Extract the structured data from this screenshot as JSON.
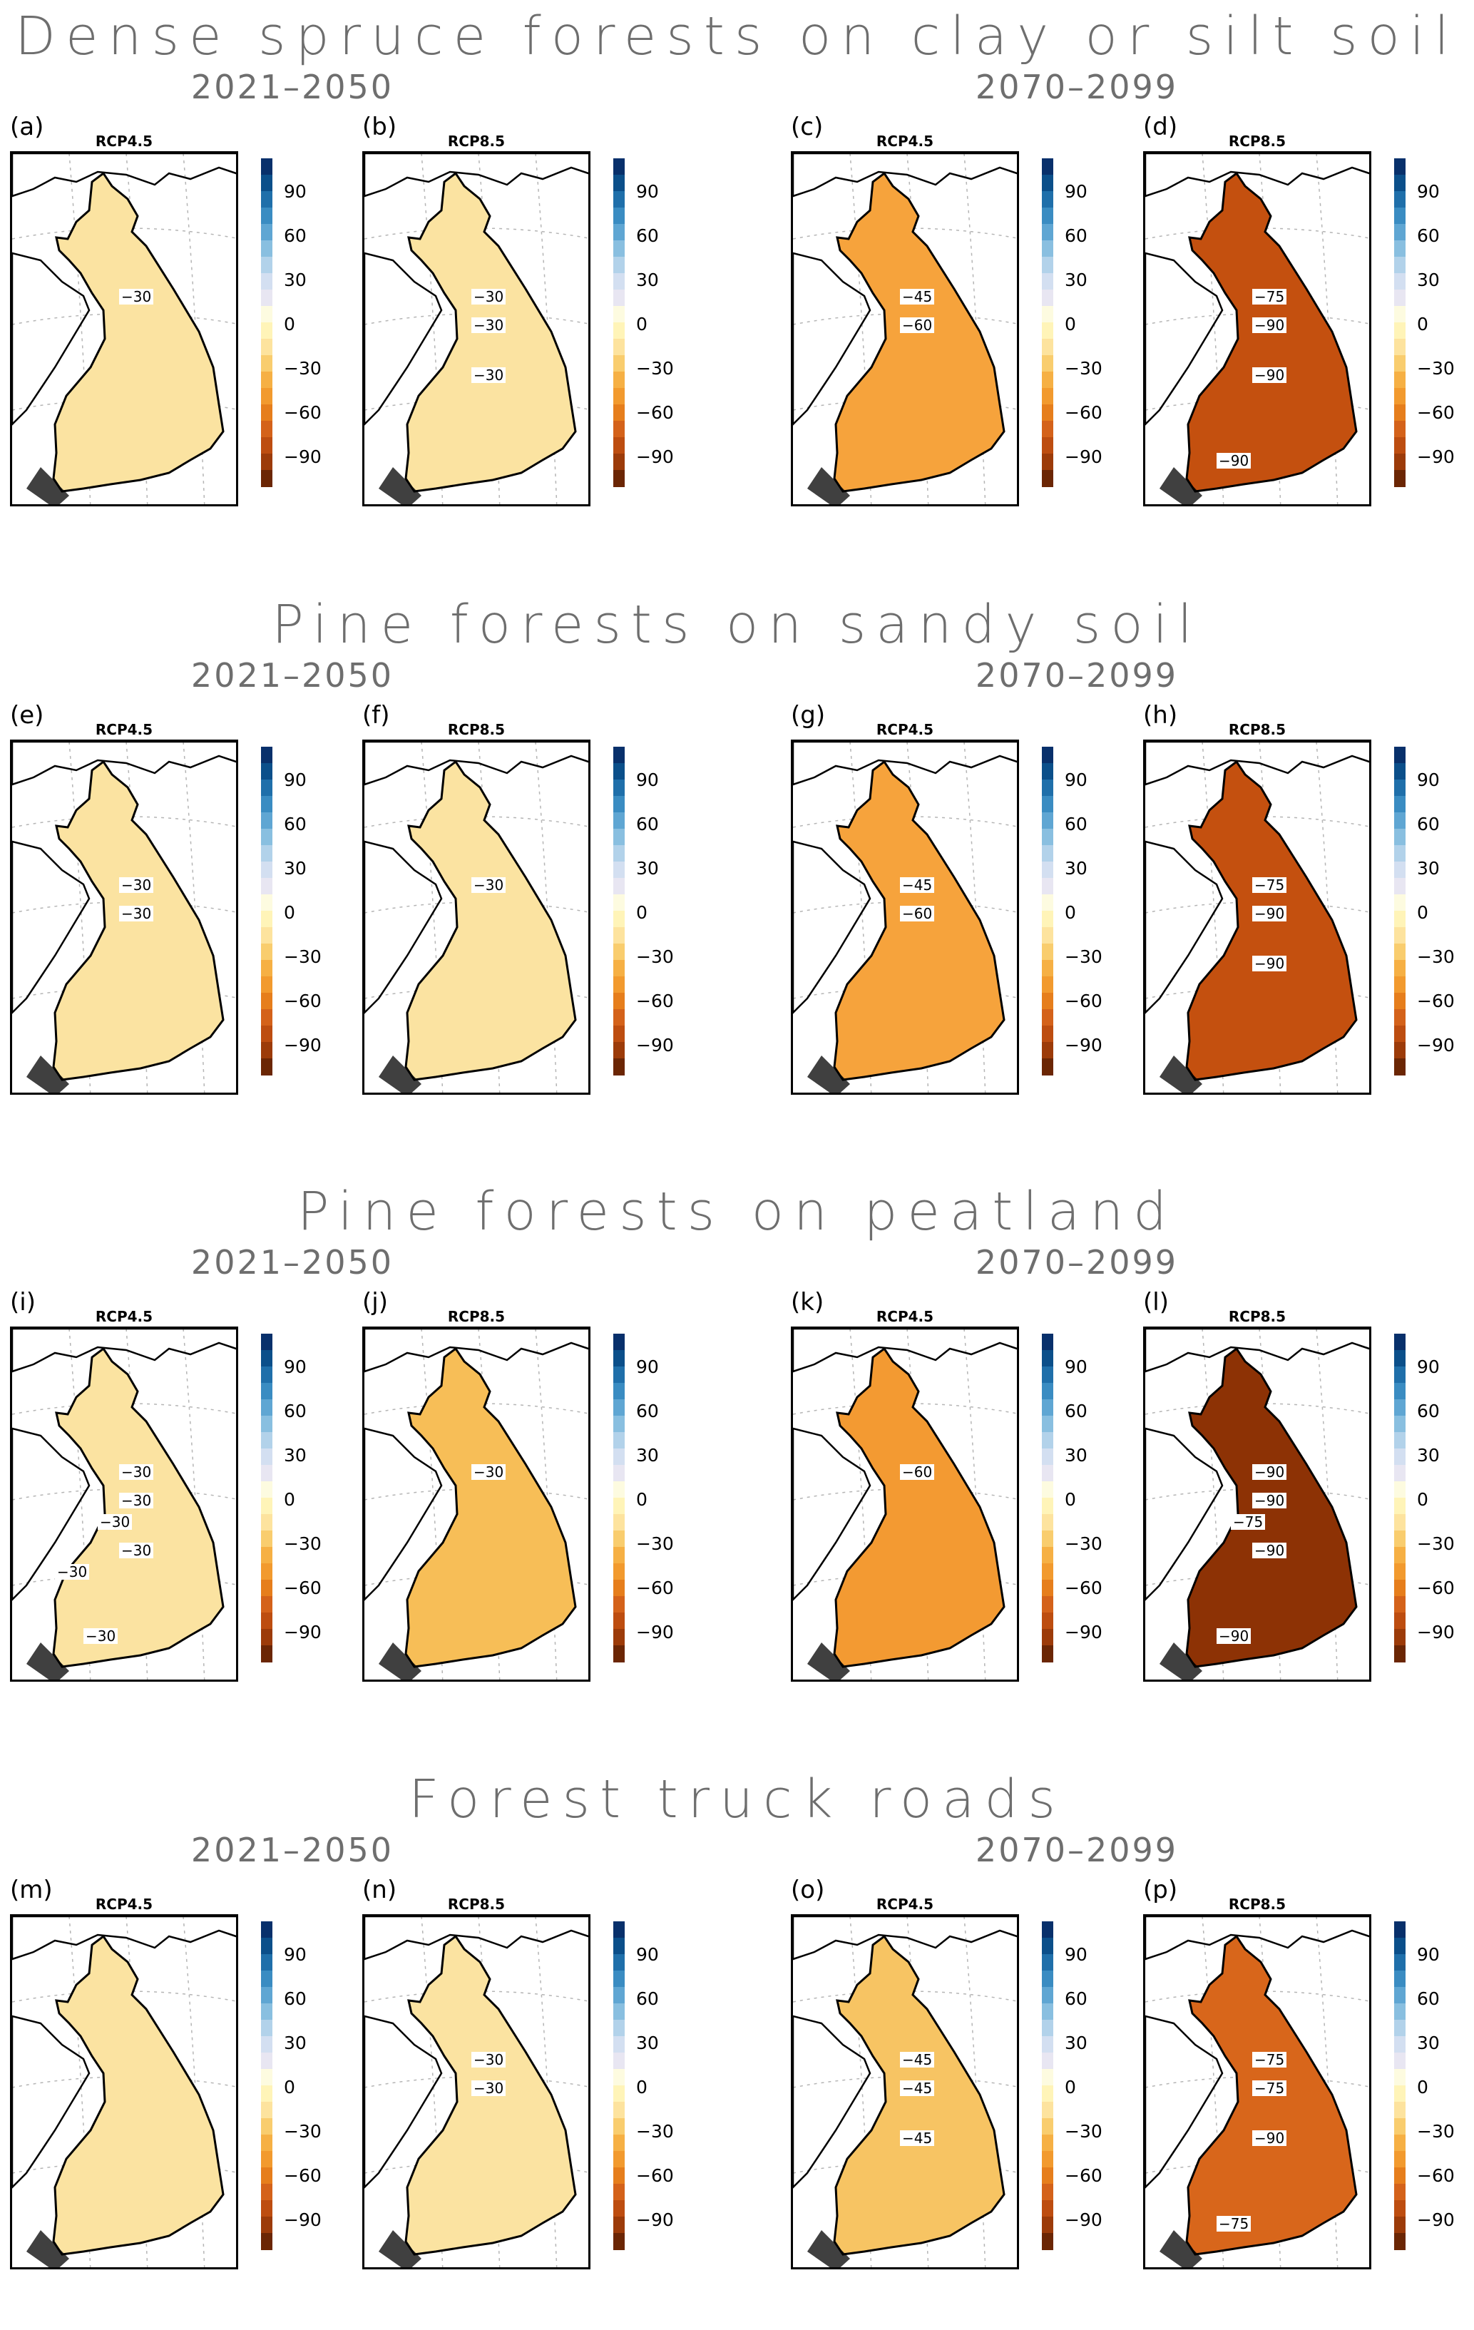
{
  "sections": [
    {
      "title": "Dense spruce forests on clay or silt soil",
      "periods": [
        "2021–2050",
        "2070–2099"
      ],
      "panels": [
        {
          "label": "(a)",
          "scenario": "RCP4.5",
          "fill": "#fbe3a1",
          "contours": [
            "−30"
          ]
        },
        {
          "label": "(b)",
          "scenario": "RCP8.5",
          "fill": "#fbe3a1",
          "contours": [
            "−30",
            "−30",
            "−30"
          ]
        },
        {
          "label": "(c)",
          "scenario": "RCP4.5",
          "fill": "#f6a33c",
          "contours": [
            "−45",
            "−60"
          ]
        },
        {
          "label": "(d)",
          "scenario": "RCP8.5",
          "fill": "#c4500f",
          "contours": [
            "−75",
            "−90",
            "−90",
            "−90"
          ]
        }
      ]
    },
    {
      "title": "Pine forests on sandy soil",
      "periods": [
        "2021–2050",
        "2070–2099"
      ],
      "panels": [
        {
          "label": "(e)",
          "scenario": "RCP4.5",
          "fill": "#fbe3a1",
          "contours": [
            "−30",
            "−30"
          ]
        },
        {
          "label": "(f)",
          "scenario": "RCP8.5",
          "fill": "#fbe3a1",
          "contours": [
            "−30"
          ]
        },
        {
          "label": "(g)",
          "scenario": "RCP4.5",
          "fill": "#f6a33c",
          "contours": [
            "−45",
            "−60"
          ]
        },
        {
          "label": "(h)",
          "scenario": "RCP8.5",
          "fill": "#c4500f",
          "contours": [
            "−75",
            "−90",
            "−90"
          ]
        }
      ]
    },
    {
      "title": "Pine forests on peatland",
      "periods": [
        "2021–2050",
        "2070–2099"
      ],
      "panels": [
        {
          "label": "(i)",
          "scenario": "RCP4.5",
          "fill": "#fbe3a1",
          "contours": [
            "−30",
            "−30",
            "−30",
            "−30",
            "−30",
            "−30"
          ]
        },
        {
          "label": "(j)",
          "scenario": "RCP8.5",
          "fill": "#f7be57",
          "contours": [
            "−30"
          ]
        },
        {
          "label": "(k)",
          "scenario": "RCP4.5",
          "fill": "#f39a32",
          "contours": [
            "−60"
          ]
        },
        {
          "label": "(l)",
          "scenario": "RCP8.5",
          "fill": "#8d3205",
          "contours": [
            "−90",
            "−90",
            "−90",
            "−90",
            "−75"
          ]
        }
      ]
    },
    {
      "title": "Forest truck roads",
      "periods": [
        "2021–2050",
        "2070–2099"
      ],
      "panels": [
        {
          "label": "(m)",
          "scenario": "RCP4.5",
          "fill": "#fbe3a1",
          "contours": []
        },
        {
          "label": "(n)",
          "scenario": "RCP8.5",
          "fill": "#fbe3a1",
          "contours": [
            "−30",
            "−30"
          ]
        },
        {
          "label": "(o)",
          "scenario": "RCP4.5",
          "fill": "#f7c463",
          "contours": [
            "−45",
            "−45",
            "−45"
          ]
        },
        {
          "label": "(p)",
          "scenario": "RCP8.5",
          "fill": "#d8661b",
          "contours": [
            "−75",
            "−75",
            "−90",
            "−75"
          ]
        }
      ]
    }
  ],
  "colorbar": {
    "ticks": [
      "90",
      "60",
      "30",
      "0",
      "−30",
      "−60",
      "−90"
    ],
    "colors": [
      "#08306b",
      "#0b4f8a",
      "#1f6faa",
      "#3a8cc2",
      "#5fa6d3",
      "#89bfe0",
      "#b2d2ea",
      "#d3dff1",
      "#e8e6f2",
      "#fdfbe0",
      "#fff4b8",
      "#fde39e",
      "#f9cd6e",
      "#f6b044",
      "#f29a2e",
      "#e67e1c",
      "#d4621a",
      "#bd4d10",
      "#9c3b09",
      "#6b2604"
    ]
  }
}
